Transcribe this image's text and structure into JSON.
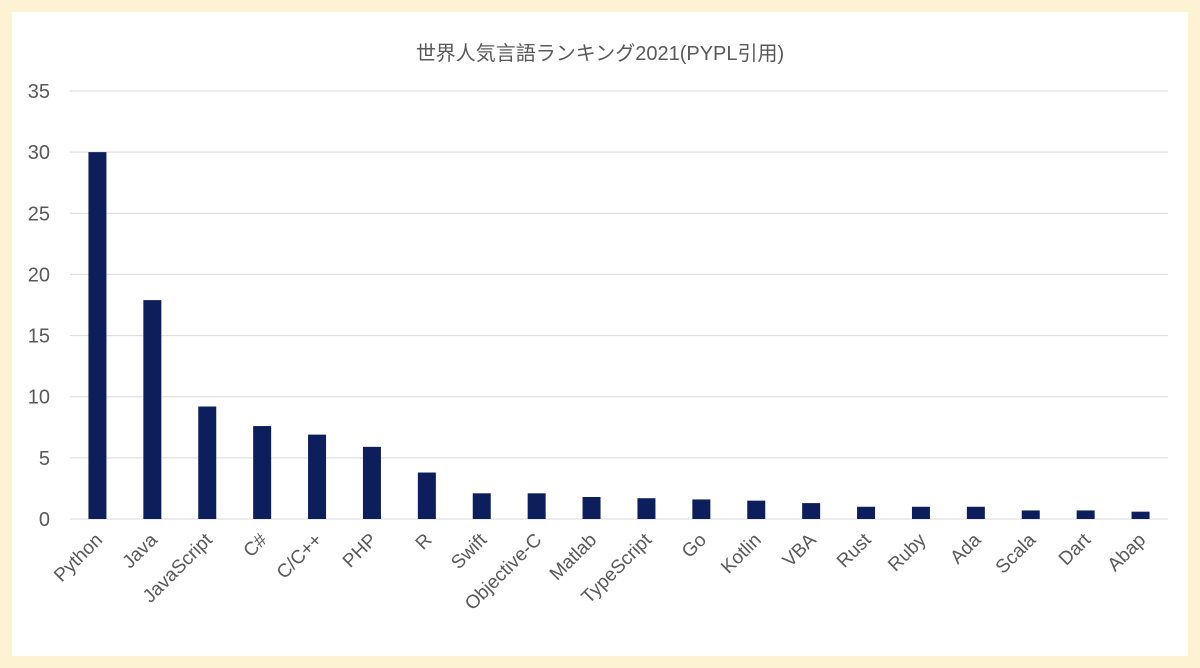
{
  "chart_data": {
    "type": "bar",
    "title": "世界人気言語ランキング2021(PYPL引用)",
    "xlabel": "",
    "ylabel": "",
    "ylim": [
      0,
      35
    ],
    "yticks": [
      "0",
      "5",
      "10",
      "15",
      "20",
      "25",
      "30",
      "35"
    ],
    "grid": true,
    "categories": [
      "Python",
      "Java",
      "JavaScript",
      "C#",
      "C/C++",
      "PHP",
      "R",
      "Swift",
      "Objective-C",
      "Matlab",
      "TypeScript",
      "Go",
      "Kotlin",
      "VBA",
      "Rust",
      "Ruby",
      "Ada",
      "Scala",
      "Dart",
      "Abap"
    ],
    "values": [
      30.0,
      17.9,
      9.2,
      7.6,
      6.9,
      5.9,
      3.8,
      2.1,
      2.1,
      1.8,
      1.7,
      1.6,
      1.5,
      1.3,
      1.0,
      1.0,
      1.0,
      0.7,
      0.7,
      0.6
    ],
    "bar_color": "#0c1f5c",
    "background_color": "#fdf3d2"
  }
}
